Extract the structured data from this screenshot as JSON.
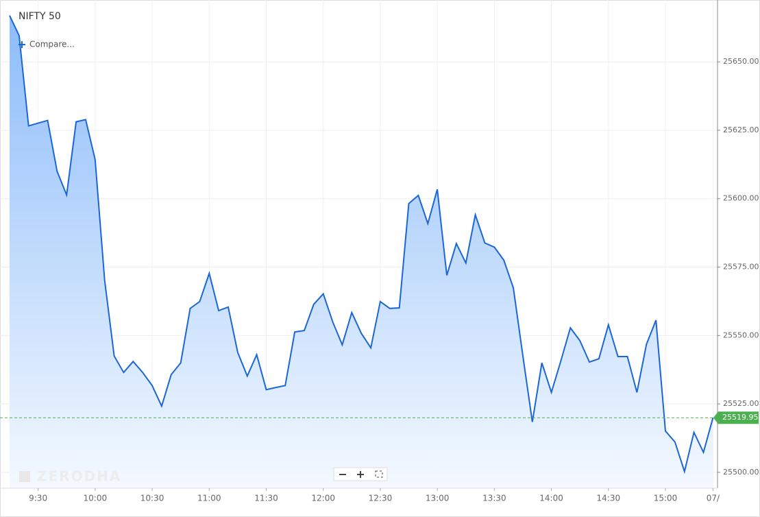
{
  "chart_data": {
    "type": "area",
    "title": "NIFTY 50",
    "compare": "Compare...",
    "watermark": "ZERODHA",
    "categories": [
      null,
      null,
      null,
      "9:30",
      null,
      null,
      null,
      null,
      null,
      "10:00",
      null,
      null,
      null,
      null,
      null,
      "10:30",
      null,
      null,
      null,
      null,
      null,
      "11:00",
      null,
      null,
      null,
      null,
      null,
      "11:30",
      null,
      null,
      null,
      null,
      null,
      "12:00",
      null,
      null,
      null,
      null,
      null,
      "12:30",
      null,
      null,
      null,
      null,
      null,
      "13:00",
      null,
      null,
      null,
      null,
      null,
      "13:30",
      null,
      null,
      null,
      null,
      null,
      "14:00",
      null,
      null,
      null,
      null,
      null,
      "14:30",
      null,
      null,
      null,
      null,
      null,
      "15:00",
      null,
      null,
      null,
      null,
      "07/"
    ],
    "series": [
      {
        "name": "NIFTY 50",
        "color": "#1a66d6",
        "values": [
          25666.9,
          25659.6,
          25626.6,
          25627.6,
          25628.6,
          25610.0,
          25601.4,
          25628.1,
          25628.9,
          25614.3,
          25570.2,
          25542.5,
          25536.5,
          25540.5,
          25536.5,
          25531.7,
          25524.2,
          25535.7,
          25540.0,
          25559.9,
          25562.4,
          25572.7,
          25559.1,
          25560.4,
          25543.8,
          25535.2,
          25543.0,
          25530.2,
          25531.0,
          25531.7,
          25551.3,
          25551.8,
          25561.4,
          25565.2,
          25554.9,
          25546.6,
          25558.4,
          25550.8,
          25545.5,
          25562.4,
          25559.9,
          25560.1,
          25598.2,
          25601.2,
          25590.9,
          25603.4,
          25572.0,
          25583.6,
          25576.5,
          25594.1,
          25583.8,
          25582.3,
          25577.5,
          25567.4,
          25542.5,
          25518.4,
          25540.0,
          25529.2,
          25540.8,
          25552.8,
          25548.1,
          25540.3,
          25541.5,
          25553.9,
          25542.3,
          25542.3,
          25529.2,
          25546.8,
          25555.6,
          25515.1,
          25511.1,
          25500.3,
          25514.6,
          25507.3,
          25519.95
        ]
      }
    ],
    "last_price": 25519.95,
    "last_price_color": "#4caf50",
    "ylim": [
      25494.2,
      25672.6
    ],
    "yticks": [
      {
        "value": 25500,
        "label": "25500.00"
      },
      {
        "value": 25525,
        "label": "25525.00"
      },
      {
        "value": 25550,
        "label": "25550.00"
      },
      {
        "value": 25575,
        "label": "25575.00"
      },
      {
        "value": 25600,
        "label": "25600.00"
      },
      {
        "value": 25625,
        "label": "25625.00"
      },
      {
        "value": 25650,
        "label": "25650.00"
      }
    ],
    "grid": true
  }
}
